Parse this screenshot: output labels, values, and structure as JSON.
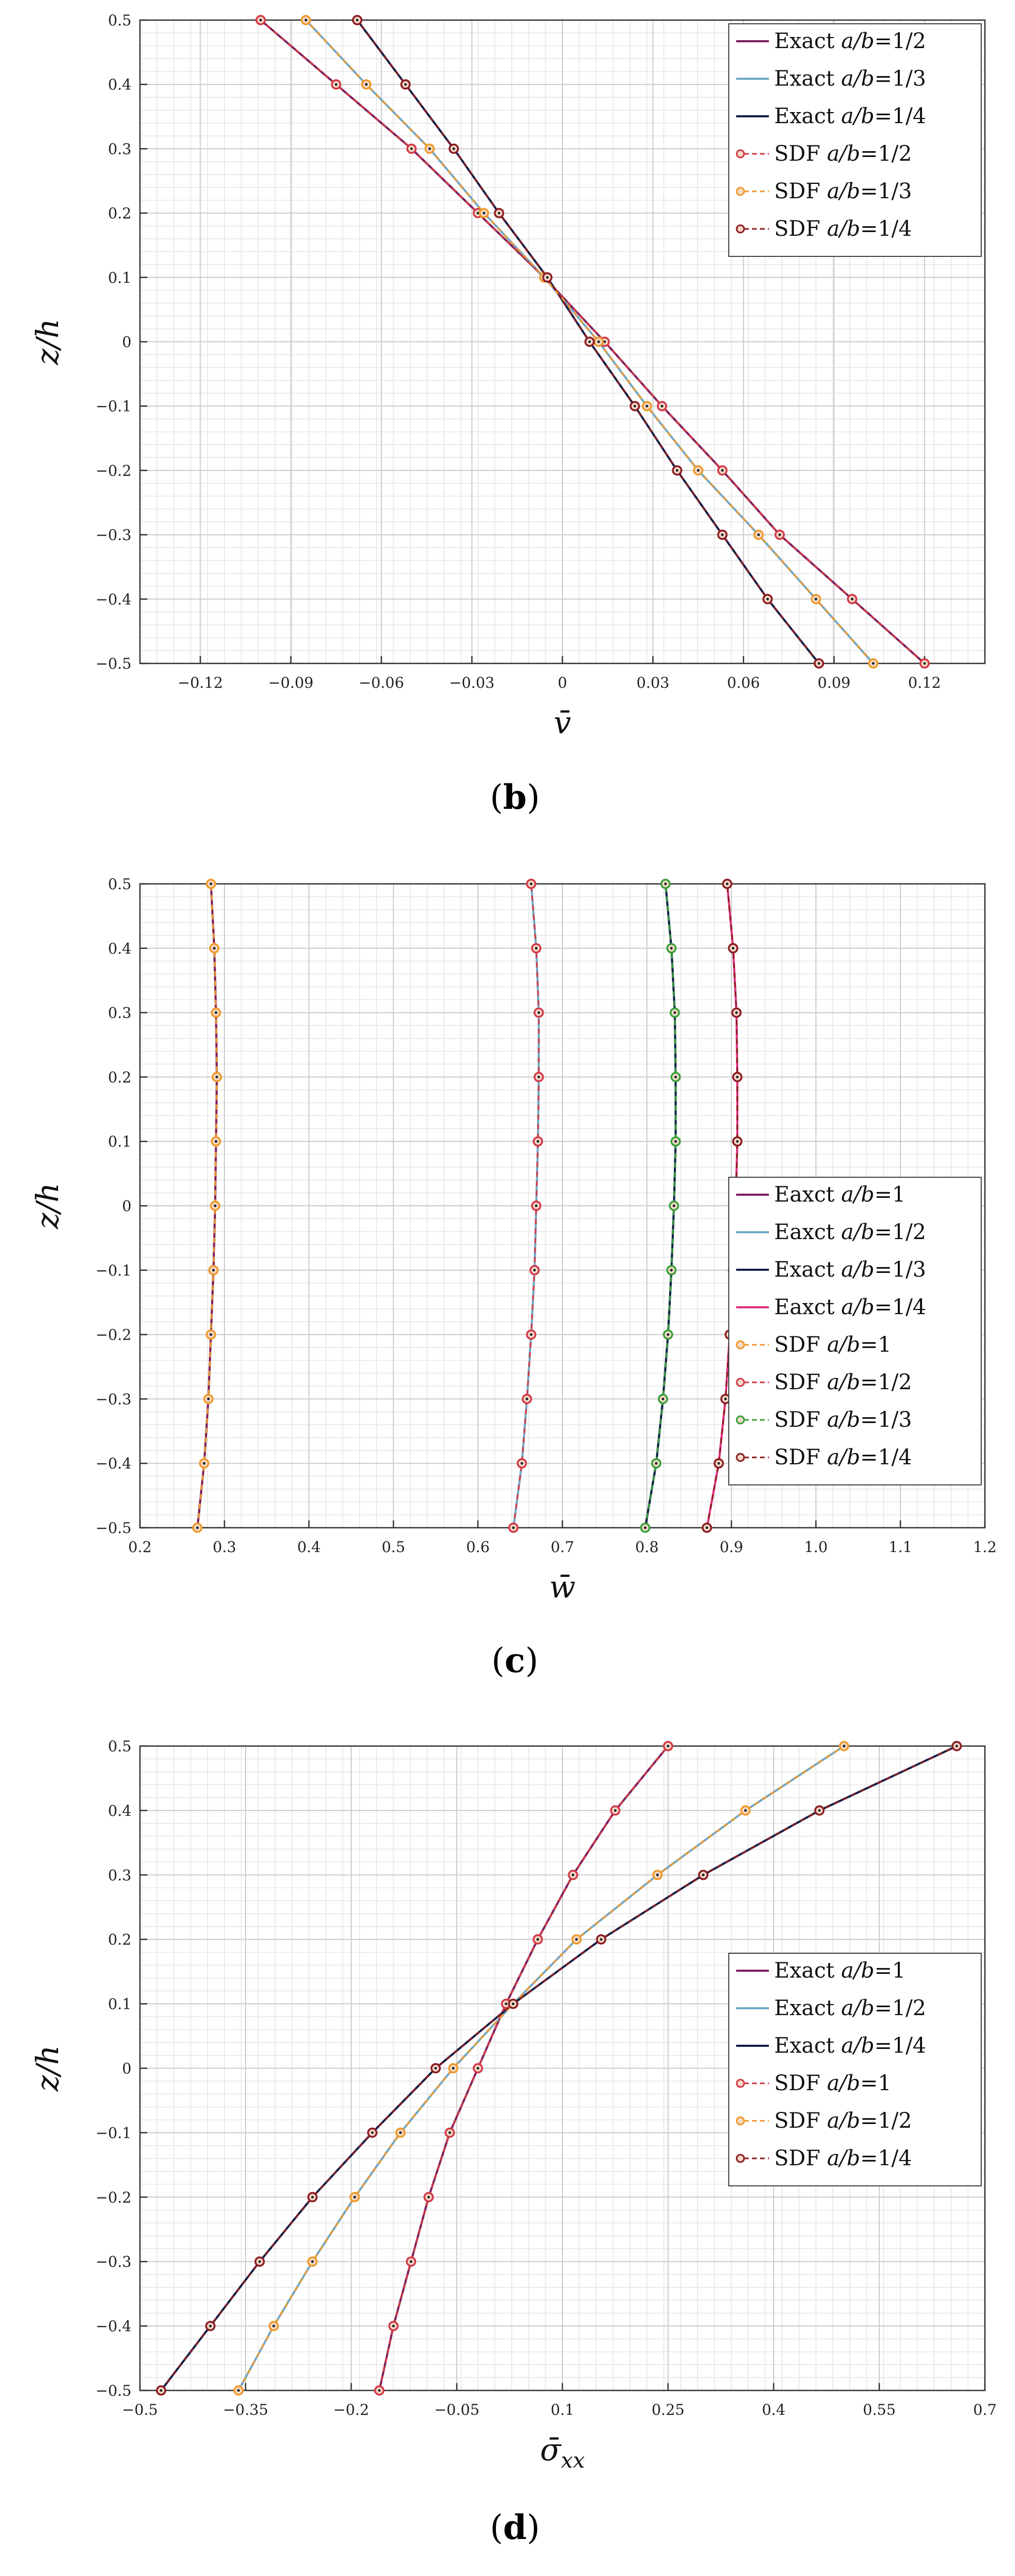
{
  "colors": {
    "exact_12": "#7a1f5c",
    "exact_13": "#6fa8c9",
    "exact_14": "#0f1f47",
    "sdf_12": "#d23a48",
    "sdf_13": "#ef9a2b",
    "sdf_14": "#8c1c22",
    "c_exact_1": "#7a1f5c",
    "c_exact_12": "#6fa8c9",
    "c_exact_13": "#0f1f47",
    "c_exact_14": "#e0327a",
    "c_sdf_1": "#ef9a2b",
    "c_sdf_12": "#d23a48",
    "c_sdf_13": "#3aa03a",
    "c_sdf_14": "#8c1c22"
  },
  "chart_data": [
    {
      "type": "line",
      "panel_prefix": "(",
      "panel_letter": "b",
      "panel_suffix": ")",
      "xlabel": "v̄",
      "ylabel": "z/h",
      "xlim": [
        -0.14,
        0.14
      ],
      "ylim": [
        -0.5,
        0.5
      ],
      "xticks": [
        -0.12,
        -0.09,
        -0.06,
        -0.03,
        0,
        0.03,
        0.06,
        0.09,
        0.12
      ],
      "xtick_labels": [
        "−0.12",
        "−0.09",
        "−0.06",
        "−0.03",
        "0",
        "0.03",
        "0.06",
        "0.09",
        "0.12"
      ],
      "yticks": [
        0.5,
        0.4,
        0.3,
        0.2,
        0.1,
        0,
        -0.1,
        -0.2,
        -0.3,
        -0.4,
        -0.5
      ],
      "ytick_labels": [
        "0.5",
        "0.4",
        "0.3",
        "0.2",
        "0.1",
        "0",
        "−0.1",
        "−0.2",
        "−0.3",
        "−0.4",
        "−0.5"
      ],
      "legend_position": "top-right",
      "z": [
        -0.5,
        -0.4,
        -0.3,
        -0.2,
        -0.1,
        0,
        0.1,
        0.2,
        0.3,
        0.4,
        0.5
      ],
      "series": [
        {
          "name": "Exact a/b=1/2",
          "label_main": "Exact",
          "label_var": "a/b",
          "label_val": "=1/2",
          "style": "line",
          "color_key": "exact_12",
          "values": [
            0.12,
            0.096,
            0.072,
            0.053,
            0.033,
            0.014,
            -0.006,
            -0.028,
            -0.05,
            -0.075,
            -0.1
          ]
        },
        {
          "name": "Exact a/b=1/3",
          "label_main": "Exact",
          "label_var": "a/b",
          "label_val": "=1/3",
          "style": "line",
          "color_key": "exact_13",
          "values": [
            0.103,
            0.084,
            0.065,
            0.045,
            0.028,
            0.012,
            -0.006,
            -0.026,
            -0.044,
            -0.065,
            -0.085
          ]
        },
        {
          "name": "Exact a/b=1/4",
          "label_main": "Exact",
          "label_var": "a/b",
          "label_val": "=1/4",
          "style": "line",
          "color_key": "exact_14",
          "values": [
            0.085,
            0.068,
            0.053,
            0.038,
            0.024,
            0.009,
            -0.005,
            -0.021,
            -0.036,
            -0.052,
            -0.068
          ]
        },
        {
          "name": "SDF a/b=1/2",
          "label_main": "SDF",
          "label_var": "a/b",
          "label_val": "=1/2",
          "style": "marker",
          "color_key": "sdf_12",
          "values": [
            0.12,
            0.096,
            0.072,
            0.053,
            0.033,
            0.014,
            -0.006,
            -0.028,
            -0.05,
            -0.075,
            -0.1
          ]
        },
        {
          "name": "SDF a/b=1/3",
          "label_main": "SDF",
          "label_var": "a/b",
          "label_val": "=1/3",
          "style": "marker",
          "color_key": "sdf_13",
          "values": [
            0.103,
            0.084,
            0.065,
            0.045,
            0.028,
            0.012,
            -0.006,
            -0.026,
            -0.044,
            -0.065,
            -0.085
          ]
        },
        {
          "name": "SDF a/b=1/4",
          "label_main": "SDF",
          "label_var": "a/b",
          "label_val": "=1/4",
          "style": "marker",
          "color_key": "sdf_14",
          "values": [
            0.085,
            0.068,
            0.053,
            0.038,
            0.024,
            0.009,
            -0.005,
            -0.021,
            -0.036,
            -0.052,
            -0.068
          ]
        }
      ]
    },
    {
      "type": "line",
      "panel_prefix": "(",
      "panel_letter": "c",
      "panel_suffix": ")",
      "xlabel": "w̄",
      "ylabel": "z/h",
      "xlim": [
        0.2,
        1.2
      ],
      "ylim": [
        -0.5,
        0.5
      ],
      "xticks": [
        0.2,
        0.3,
        0.4,
        0.5,
        0.6,
        0.7,
        0.8,
        0.9,
        1.0,
        1.1,
        1.2
      ],
      "xtick_labels": [
        "0.2",
        "0.3",
        "0.4",
        "0.5",
        "0.6",
        "0.7",
        "0.8",
        "0.9",
        "1.0",
        "1.1",
        "1.2"
      ],
      "yticks": [
        0.5,
        0.4,
        0.3,
        0.2,
        0.1,
        0,
        -0.1,
        -0.2,
        -0.3,
        -0.4,
        -0.5
      ],
      "ytick_labels": [
        "0.5",
        "0.4",
        "0.3",
        "0.2",
        "0.1",
        "0",
        "−0.1",
        "−0.2",
        "−0.3",
        "−0.4",
        "−0.5"
      ],
      "legend_position": "bottom-right",
      "z": [
        -0.5,
        -0.4,
        -0.3,
        -0.2,
        -0.1,
        0,
        0.1,
        0.2,
        0.3,
        0.4,
        0.5
      ],
      "series": [
        {
          "name": "Eaxct a/b=1",
          "label_main": "Eaxct",
          "label_var": "a/b",
          "label_val": "=1",
          "style": "line",
          "color_key": "c_exact_1",
          "values": [
            0.268,
            0.276,
            0.281,
            0.284,
            0.287,
            0.289,
            0.29,
            0.291,
            0.29,
            0.288,
            0.284
          ]
        },
        {
          "name": "Eaxct a/b=1/2",
          "label_main": "Eaxct",
          "label_var": "a/b",
          "label_val": "=1/2",
          "style": "line",
          "color_key": "c_exact_12",
          "values": [
            0.642,
            0.652,
            0.658,
            0.663,
            0.667,
            0.669,
            0.671,
            0.672,
            0.672,
            0.669,
            0.663
          ]
        },
        {
          "name": "Exact a/b=1/3",
          "label_main": "Exact",
          "label_var": "a/b",
          "label_val": "=1/3",
          "style": "line",
          "color_key": "c_exact_13",
          "values": [
            0.798,
            0.811,
            0.819,
            0.825,
            0.829,
            0.832,
            0.834,
            0.834,
            0.833,
            0.829,
            0.822
          ]
        },
        {
          "name": "Eaxct a/b=1/4",
          "label_main": "Eaxct",
          "label_var": "a/b",
          "label_val": "=1/4",
          "style": "line",
          "color_key": "c_exact_14",
          "values": [
            0.871,
            0.885,
            0.893,
            0.898,
            0.902,
            0.905,
            0.907,
            0.907,
            0.906,
            0.902,
            0.895
          ]
        },
        {
          "name": "SDF a/b=1",
          "label_main": "SDF",
          "label_var": "a/b",
          "label_val": "=1",
          "style": "marker",
          "color_key": "c_sdf_1",
          "values": [
            0.268,
            0.276,
            0.281,
            0.284,
            0.287,
            0.289,
            0.29,
            0.291,
            0.29,
            0.288,
            0.284
          ]
        },
        {
          "name": "SDF a/b=1/2",
          "label_main": "SDF",
          "label_var": "a/b",
          "label_val": "=1/2",
          "style": "marker",
          "color_key": "c_sdf_12",
          "values": [
            0.642,
            0.652,
            0.658,
            0.663,
            0.667,
            0.669,
            0.671,
            0.672,
            0.672,
            0.669,
            0.663
          ]
        },
        {
          "name": "SDF a/b=1/3",
          "label_main": "SDF",
          "label_var": "a/b",
          "label_val": "=1/3",
          "style": "marker",
          "color_key": "c_sdf_13",
          "values": [
            0.798,
            0.811,
            0.819,
            0.825,
            0.829,
            0.832,
            0.834,
            0.834,
            0.833,
            0.829,
            0.822
          ]
        },
        {
          "name": "SDF a/b=1/4",
          "label_main": "SDF",
          "label_var": "a/b",
          "label_val": "=1/4",
          "style": "marker",
          "color_key": "c_sdf_14",
          "values": [
            0.871,
            0.885,
            0.893,
            0.898,
            0.902,
            0.905,
            0.907,
            0.907,
            0.906,
            0.902,
            0.895
          ]
        }
      ]
    },
    {
      "type": "line",
      "panel_prefix": "(",
      "panel_letter": "d",
      "panel_suffix": ")",
      "xlabel": "σ̄",
      "xlabel_sub": "xx",
      "ylabel": "z/h",
      "xlim": [
        -0.5,
        0.7
      ],
      "ylim": [
        -0.5,
        0.5
      ],
      "xticks": [
        -0.5,
        -0.35,
        -0.2,
        -0.05,
        0.1,
        0.25,
        0.4,
        0.55,
        0.7
      ],
      "xtick_labels": [
        "−0.5",
        "−0.35",
        "−0.2",
        "−0.05",
        "0.1",
        "0.25",
        "0.4",
        "0.55",
        "0.7"
      ],
      "yticks": [
        0.5,
        0.4,
        0.3,
        0.2,
        0.1,
        0,
        -0.1,
        -0.2,
        -0.3,
        -0.4,
        -0.5
      ],
      "ytick_labels": [
        "0.5",
        "0.4",
        "0.3",
        "0.2",
        "0.1",
        "0",
        "−0.1",
        "−0.2",
        "−0.3",
        "−0.4",
        "−0.5"
      ],
      "legend_position": "center-right",
      "z": [
        -0.5,
        -0.4,
        -0.3,
        -0.2,
        -0.1,
        0,
        0.1,
        0.2,
        0.3,
        0.4,
        0.5
      ],
      "series": [
        {
          "name": "Exact a/b=1",
          "label_main": "Exact",
          "label_var": "a/b",
          "label_val": "=1",
          "style": "line",
          "color_key": "exact_12",
          "values": [
            -0.16,
            -0.14,
            -0.115,
            -0.09,
            -0.06,
            -0.02,
            0.02,
            0.065,
            0.115,
            0.175,
            0.25
          ]
        },
        {
          "name": "Exact a/b=1/2",
          "label_main": "Exact",
          "label_var": "a/b",
          "label_val": "=1/2",
          "style": "line",
          "color_key": "exact_13",
          "values": [
            -0.36,
            -0.31,
            -0.255,
            -0.195,
            -0.13,
            -0.055,
            0.03,
            0.12,
            0.235,
            0.36,
            0.5
          ]
        },
        {
          "name": "Exact a/b=1/4",
          "label_main": "Exact",
          "label_var": "a/b",
          "label_val": "=1/4",
          "style": "line",
          "color_key": "exact_14",
          "values": [
            -0.47,
            -0.4,
            -0.33,
            -0.255,
            -0.17,
            -0.08,
            0.03,
            0.155,
            0.3,
            0.465,
            0.66
          ]
        },
        {
          "name": "SDF a/b=1",
          "label_main": "SDF",
          "label_var": "a/b",
          "label_val": "=1",
          "style": "marker",
          "color_key": "sdf_12",
          "values": [
            -0.16,
            -0.14,
            -0.115,
            -0.09,
            -0.06,
            -0.02,
            0.02,
            0.065,
            0.115,
            0.175,
            0.25
          ]
        },
        {
          "name": "SDF a/b=1/2",
          "label_main": "SDF",
          "label_var": "a/b",
          "label_val": "=1/2",
          "style": "marker",
          "color_key": "sdf_13",
          "values": [
            -0.36,
            -0.31,
            -0.255,
            -0.195,
            -0.13,
            -0.055,
            0.03,
            0.12,
            0.235,
            0.36,
            0.5
          ]
        },
        {
          "name": "SDF a/b=1/4",
          "label_main": "SDF",
          "label_var": "a/b",
          "label_val": "=1/4",
          "style": "marker",
          "color_key": "sdf_14",
          "values": [
            -0.47,
            -0.4,
            -0.33,
            -0.255,
            -0.17,
            -0.08,
            0.03,
            0.155,
            0.3,
            0.465,
            0.66
          ]
        }
      ]
    }
  ]
}
